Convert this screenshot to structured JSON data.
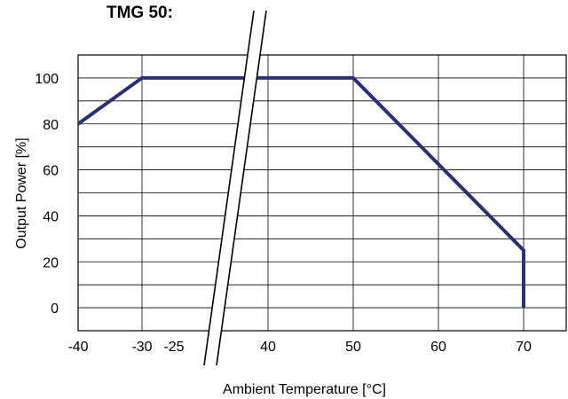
{
  "chart_data": {
    "type": "line",
    "title": "TMG 50:",
    "xlabel": "Ambient Temperature [°C]",
    "ylabel": "Output Power [%]",
    "x_tick_labels": [
      "-40",
      "-30",
      "-25",
      "40",
      "50",
      "60",
      "70"
    ],
    "y_tick_labels": [
      "0",
      "20",
      "40",
      "60",
      "80",
      "100"
    ],
    "ylim": [
      -10,
      110
    ],
    "axis_break": "between -25 and 40",
    "grid": true,
    "series": [
      {
        "color": "#2b2f7a",
        "points": [
          {
            "x": -40,
            "y": 80
          },
          {
            "x": -30,
            "y": 100
          },
          {
            "x": 50,
            "y": 100
          },
          {
            "x": 70,
            "y": 25
          },
          {
            "x": 70,
            "y": 0
          }
        ]
      }
    ]
  }
}
